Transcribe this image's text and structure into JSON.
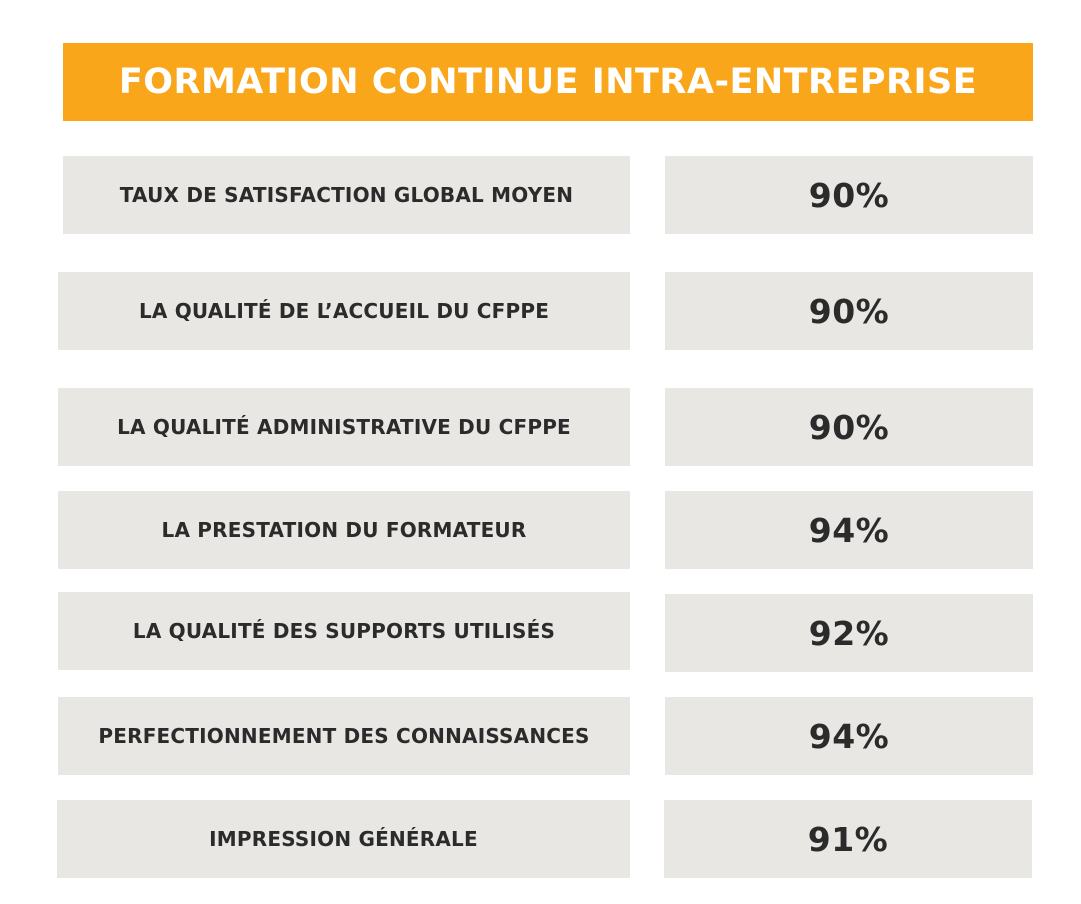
{
  "title": "FORMATION CONTINUE INTRA-ENTREPRISE",
  "colors": {
    "accent": "#F9A61B",
    "cell_background": "#E8E7E4",
    "text": "#2B2B2B"
  },
  "rows": [
    {
      "label": "TAUX DE SATISFACTION GLOBAL MOYEN",
      "value": "90%"
    },
    {
      "label": "LA QUALITÉ DE L’ACCUEIL DU CFPPE",
      "value": "90%"
    },
    {
      "label": "LA QUALITÉ ADMINISTRATIVE DU CFPPE",
      "value": "90%"
    },
    {
      "label": "LA PRESTATION DU FORMATEUR",
      "value": "94%"
    },
    {
      "label": "LA QUALITÉ DES SUPPORTS UTILISÉS",
      "value": "92%"
    },
    {
      "label": "PERFECTIONNEMENT DES CONNAISSANCES",
      "value": "94%"
    },
    {
      "label": "IMPRESSION GÉNÉRALE",
      "value": "91%"
    }
  ]
}
